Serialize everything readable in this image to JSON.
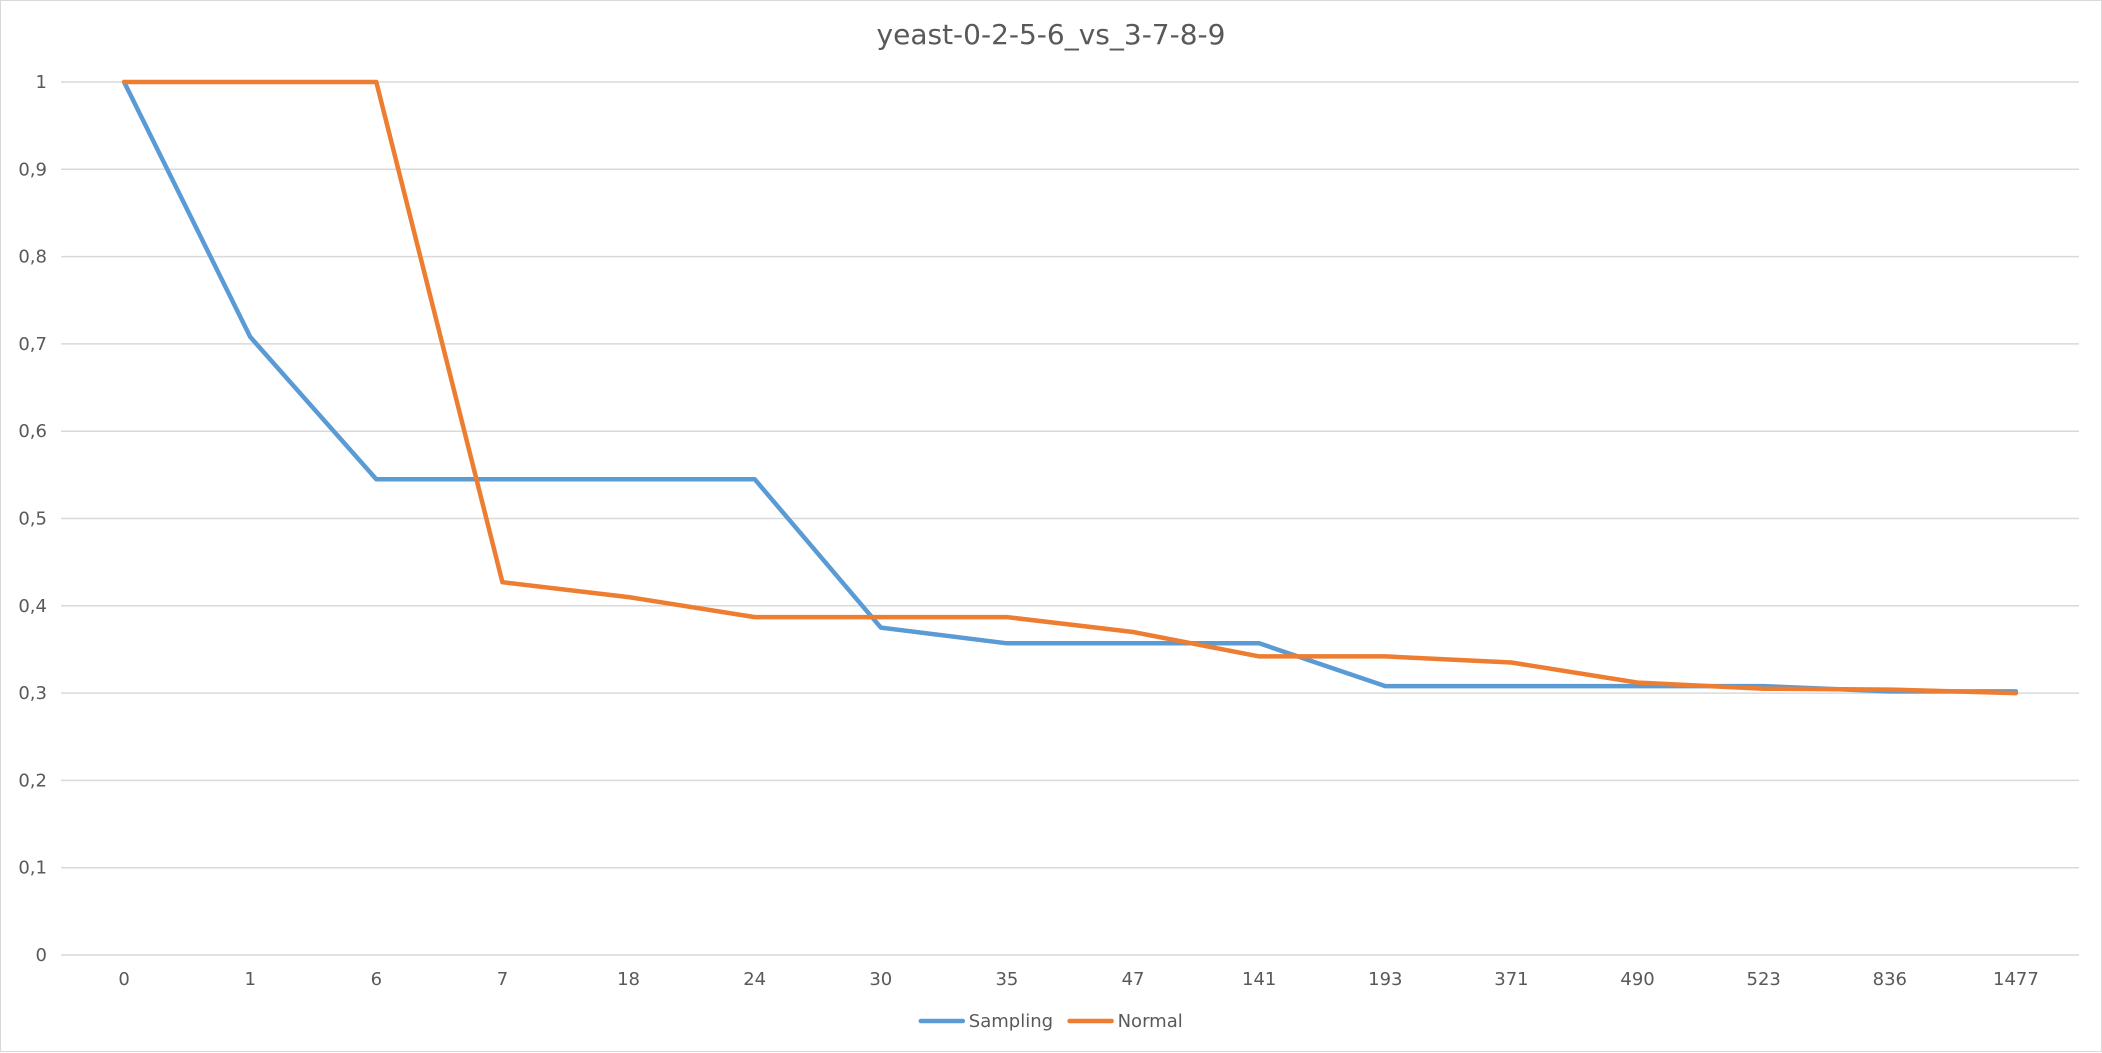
{
  "chart_data": {
    "type": "line",
    "title": "yeast-0-2-5-6_vs_3-7-8-9",
    "xlabel": "",
    "ylabel": "",
    "categories": [
      "0",
      "1",
      "6",
      "7",
      "18",
      "24",
      "30",
      "35",
      "47",
      "141",
      "193",
      "371",
      "490",
      "523",
      "836",
      "1477"
    ],
    "ylim": [
      0,
      1
    ],
    "y_ticks": [
      "0",
      "0,1",
      "0,2",
      "0,3",
      "0,4",
      "0,5",
      "0,6",
      "0,7",
      "0,8",
      "0,9",
      "1"
    ],
    "grid": true,
    "legend_position": "bottom",
    "series": [
      {
        "name": "Sampling",
        "color": "#5b9bd5",
        "values": [
          1.0,
          0.708,
          0.545,
          0.545,
          0.545,
          0.545,
          0.375,
          0.357,
          0.357,
          0.357,
          0.308,
          0.308,
          0.308,
          0.308,
          0.302,
          0.302
        ]
      },
      {
        "name": "Normal",
        "color": "#ed7d31",
        "values": [
          1.0,
          1.0,
          1.0,
          0.427,
          0.41,
          0.387,
          0.387,
          0.387,
          0.37,
          0.342,
          0.342,
          0.335,
          0.312,
          0.305,
          0.304,
          0.3
        ]
      }
    ]
  }
}
